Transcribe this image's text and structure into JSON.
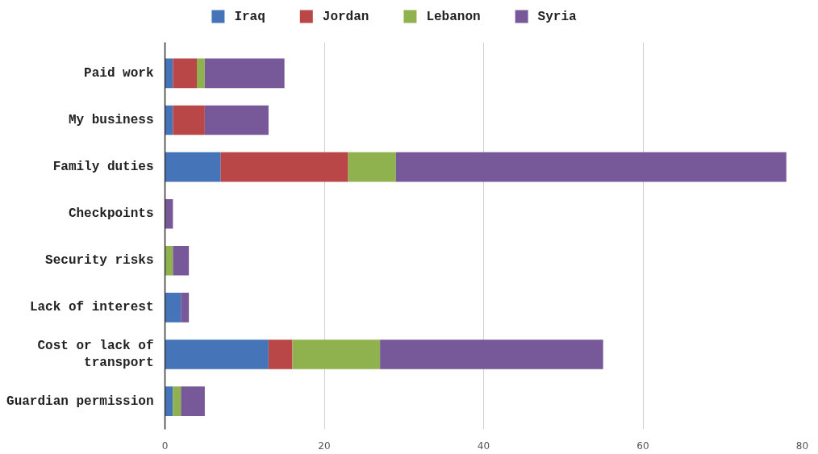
{
  "chart_data": {
    "type": "bar",
    "orientation": "horizontal",
    "stacked": true,
    "categories": [
      "Paid work",
      "My business",
      "Family duties",
      "Checkpoints",
      "Security risks",
      "Lack of interest",
      "Cost or lack of transport",
      "Guardian permission"
    ],
    "series": [
      {
        "name": "Iraq",
        "color": "#4674b9",
        "values": [
          1,
          1,
          7,
          0,
          0,
          2,
          13,
          1
        ]
      },
      {
        "name": "Jordan",
        "color": "#b94747",
        "values": [
          3,
          4,
          16,
          0,
          0,
          0,
          3,
          0
        ]
      },
      {
        "name": "Lebanon",
        "color": "#8fb24f",
        "values": [
          1,
          0,
          6,
          0,
          1,
          0,
          11,
          1
        ]
      },
      {
        "name": "Syria",
        "color": "#77599a",
        "values": [
          10,
          8,
          49,
          1,
          2,
          1,
          28,
          3
        ]
      }
    ],
    "xlim": [
      0,
      80
    ],
    "xticks": [
      0,
      20,
      40,
      60,
      80
    ],
    "grid": "x",
    "legend": "top"
  }
}
